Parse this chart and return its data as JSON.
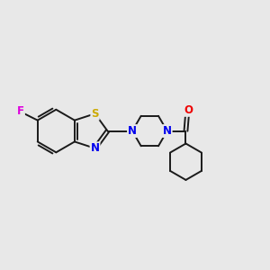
{
  "background_color": "#e8e8e8",
  "bond_color": "#1a1a1a",
  "atom_colors": {
    "F": "#dd00dd",
    "S": "#ccaa00",
    "N": "#0000ee",
    "O": "#ee0000",
    "C": "#1a1a1a"
  },
  "figsize": [
    3.0,
    3.0
  ],
  "dpi": 100
}
